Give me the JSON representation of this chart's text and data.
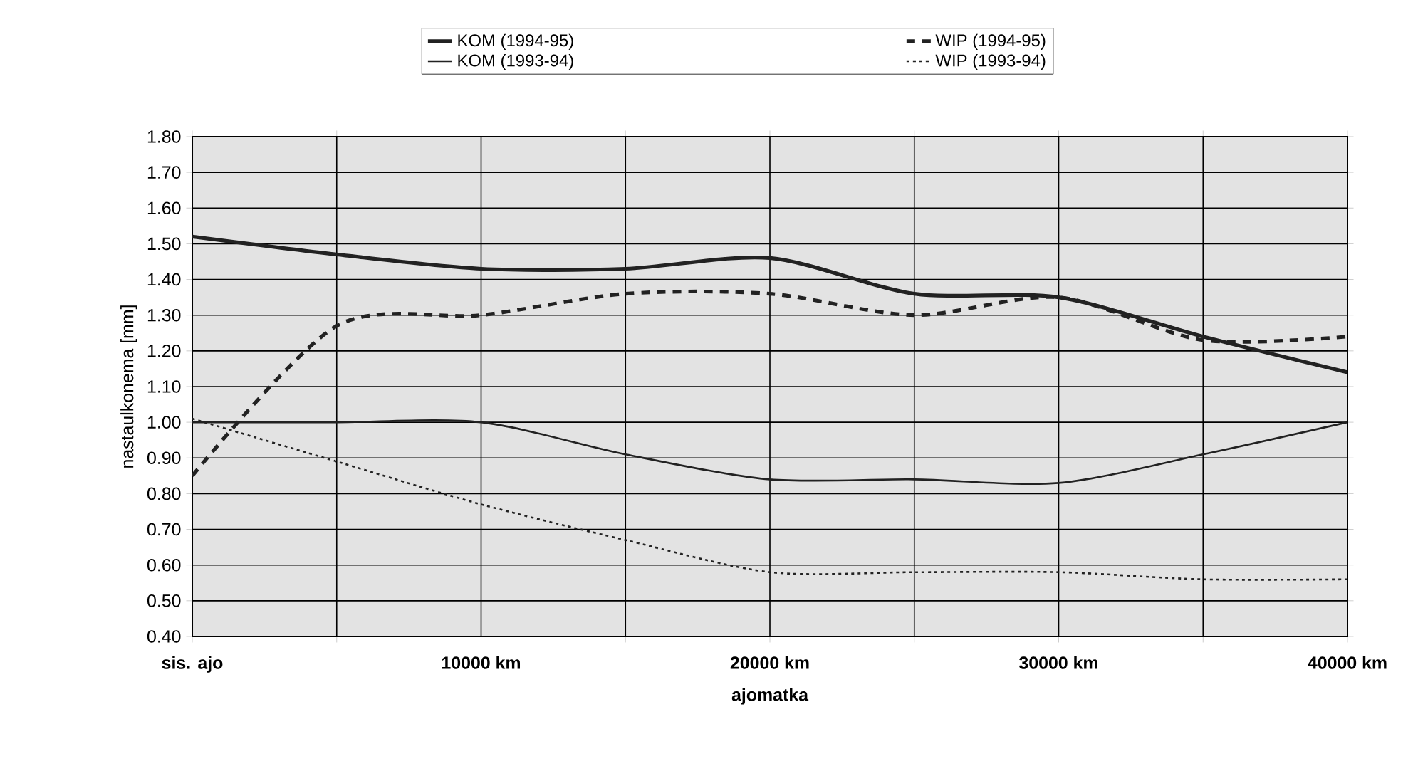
{
  "chart_data": {
    "type": "line",
    "xlabel": "ajomatka",
    "ylabel": "nastaulkonema [mm]",
    "categories": [
      "sis. ajo",
      null,
      "10000 km",
      null,
      "20000 km",
      null,
      "30000 km",
      null,
      "40000 km"
    ],
    "ylim": [
      0.4,
      1.8
    ],
    "yticks": [
      {
        "value": 0.4,
        "label": "0.40"
      },
      {
        "value": 0.5,
        "label": "0.50"
      },
      {
        "value": 0.6,
        "label": "0.60"
      },
      {
        "value": 0.7,
        "label": "0.70"
      },
      {
        "value": 0.8,
        "label": "0.80"
      },
      {
        "value": 0.9,
        "label": "0.90"
      },
      {
        "value": 1.0,
        "label": "1.00"
      },
      {
        "value": 1.1,
        "label": "1.10"
      },
      {
        "value": 1.2,
        "label": "1.20"
      },
      {
        "value": 1.3,
        "label": "1.30"
      },
      {
        "value": 1.4,
        "label": "1.40"
      },
      {
        "value": 1.5,
        "label": "1.50"
      },
      {
        "value": 1.6,
        "label": "1.60"
      },
      {
        "value": 1.7,
        "label": "1.70"
      },
      {
        "value": 1.8,
        "label": "1.80"
      }
    ],
    "grid": true,
    "legend": "top",
    "marker": "none",
    "series": [
      {
        "name": "KOM (1994-95)",
        "color": "#222222",
        "line_style": "solid",
        "values": [
          1.52,
          1.47,
          1.43,
          1.43,
          1.46,
          1.36,
          1.35,
          1.24,
          1.14
        ]
      },
      {
        "name": "WIP (1994-95)",
        "color": "#222222",
        "line_style": "dashed",
        "values": [
          0.85,
          1.27,
          1.3,
          1.36,
          1.36,
          1.3,
          1.35,
          1.23,
          1.24
        ]
      },
      {
        "name": "KOM (1993-94)",
        "color": "#222222",
        "line_style": "solid",
        "values": [
          1.0,
          1.0,
          1.0,
          0.91,
          0.84,
          0.84,
          0.83,
          0.91,
          1.0
        ]
      },
      {
        "name": "WIP (1993-94)",
        "color": "#222222",
        "line_style": "dotted",
        "values": [
          1.01,
          0.89,
          0.77,
          0.67,
          0.58,
          0.58,
          0.58,
          0.56,
          0.56
        ]
      }
    ]
  }
}
